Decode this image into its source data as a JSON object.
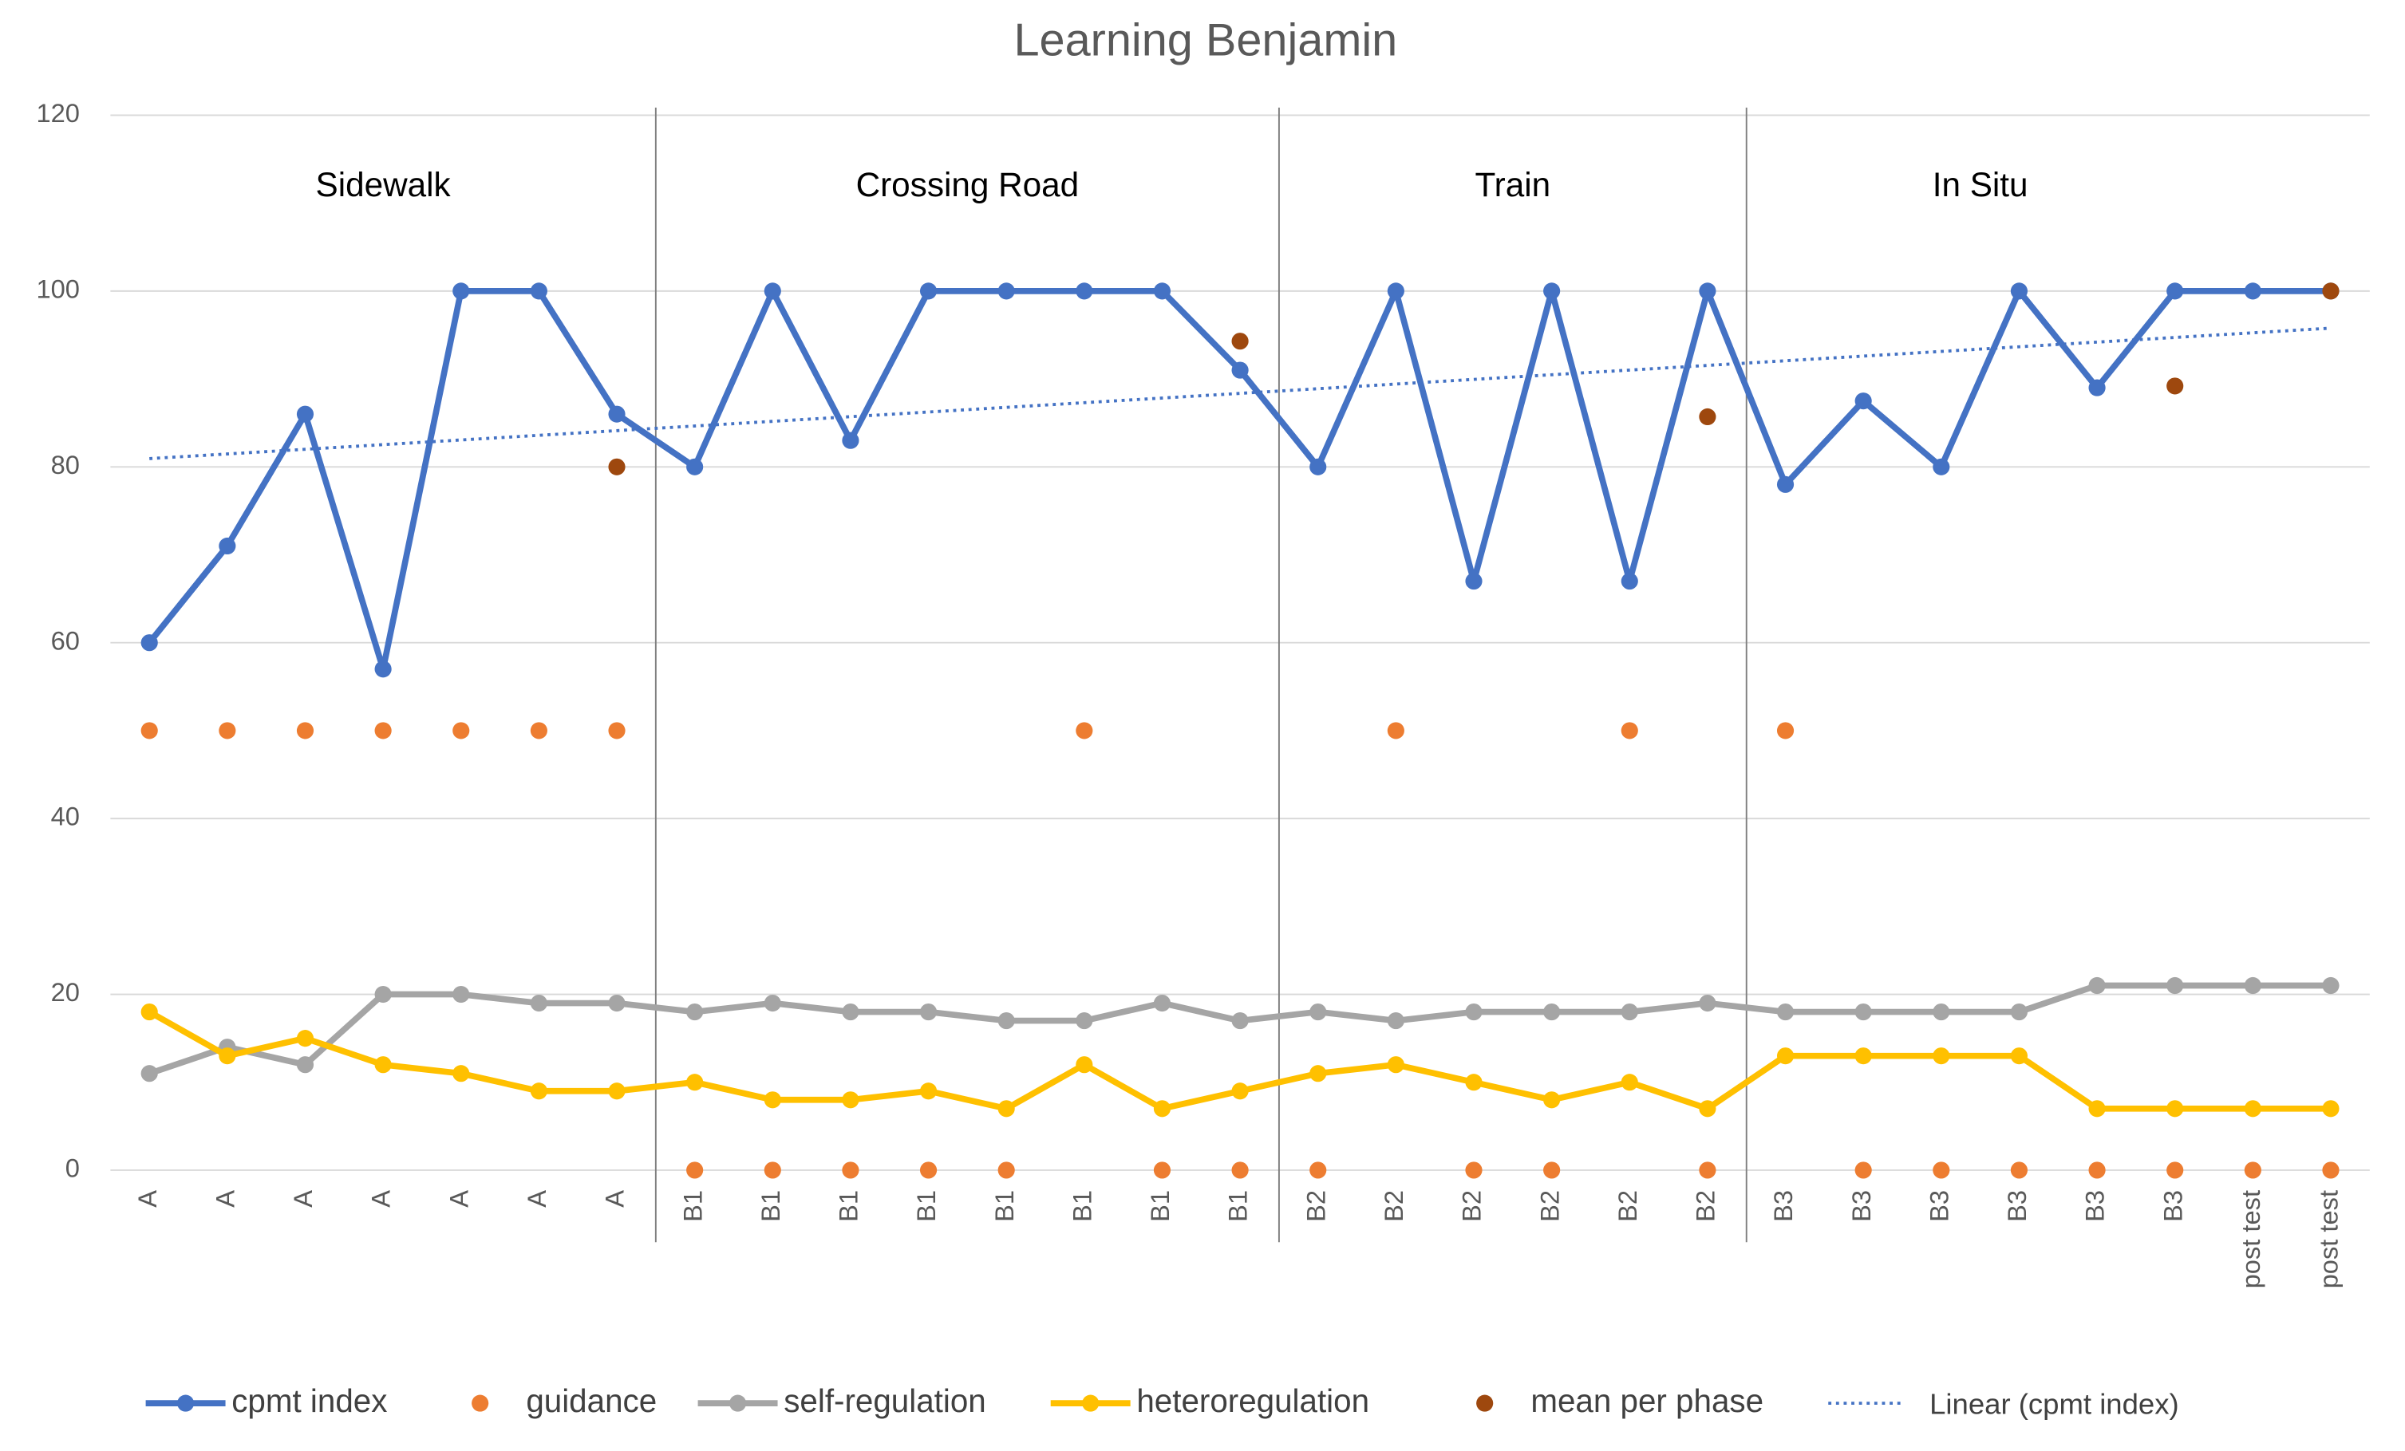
{
  "chart_data": {
    "type": "line",
    "title": "Learning Benjamin",
    "categories": [
      "A",
      "A",
      "A",
      "A",
      "A",
      "A",
      "A",
      "B1",
      "B1",
      "B1",
      "B1",
      "B1",
      "B1",
      "B1",
      "B1",
      "B2",
      "B2",
      "B2",
      "B2",
      "B2",
      "B2",
      "B3",
      "B3",
      "B3",
      "B3",
      "B3",
      "B3",
      "post test",
      "post test"
    ],
    "phases": [
      "Sidewalk",
      "Crossing Road",
      "Train",
      "In Situ"
    ],
    "series": [
      {
        "name": "cpmt index",
        "color": "#4472c4",
        "style": "line",
        "values": [
          60,
          71,
          86,
          57,
          100,
          100,
          86,
          80,
          100,
          83,
          100,
          100,
          100,
          100,
          91,
          80,
          100,
          67,
          100,
          67,
          100,
          78,
          87.5,
          80,
          100,
          89,
          100,
          100,
          100
        ]
      },
      {
        "name": "guidance",
        "color": "#ed7d31",
        "style": "markers",
        "values": [
          50,
          50,
          50,
          50,
          50,
          50,
          50,
          0,
          0,
          0,
          0,
          0,
          50,
          0,
          0,
          0,
          50,
          0,
          0,
          50,
          0,
          50,
          0,
          0,
          0,
          0,
          0,
          0,
          0
        ]
      },
      {
        "name": "self-regulation",
        "color": "#a5a5a5",
        "style": "line",
        "values": [
          11,
          14,
          12,
          20,
          20,
          19,
          19,
          18,
          19,
          18,
          18,
          17,
          17,
          19,
          17,
          18,
          17,
          18,
          18,
          18,
          19,
          18,
          18,
          18,
          18,
          21,
          21,
          21,
          21
        ]
      },
      {
        "name": "heteroregulation",
        "color": "#ffc000",
        "style": "line",
        "values": [
          18,
          13,
          15,
          12,
          11,
          9,
          9,
          10,
          8,
          8,
          9,
          7,
          12,
          7,
          9,
          11,
          12,
          10,
          8,
          10,
          7,
          13,
          13,
          13,
          13,
          7,
          7,
          7,
          7
        ]
      },
      {
        "name": "mean per phase",
        "color": "#9e480e",
        "style": "markers",
        "values": [
          null,
          null,
          null,
          null,
          null,
          null,
          80,
          null,
          null,
          null,
          null,
          null,
          null,
          null,
          94.3,
          null,
          null,
          null,
          null,
          null,
          85.7,
          null,
          null,
          null,
          null,
          null,
          89.2,
          null,
          100
        ]
      }
    ],
    "trendline": {
      "name": "Linear (cpmt index)",
      "color": "#4472c4"
    },
    "ylim": [
      0,
      120
    ],
    "yticks": [
      0,
      20,
      40,
      60,
      80,
      100,
      120
    ],
    "grid": true,
    "legend": "bottom"
  }
}
